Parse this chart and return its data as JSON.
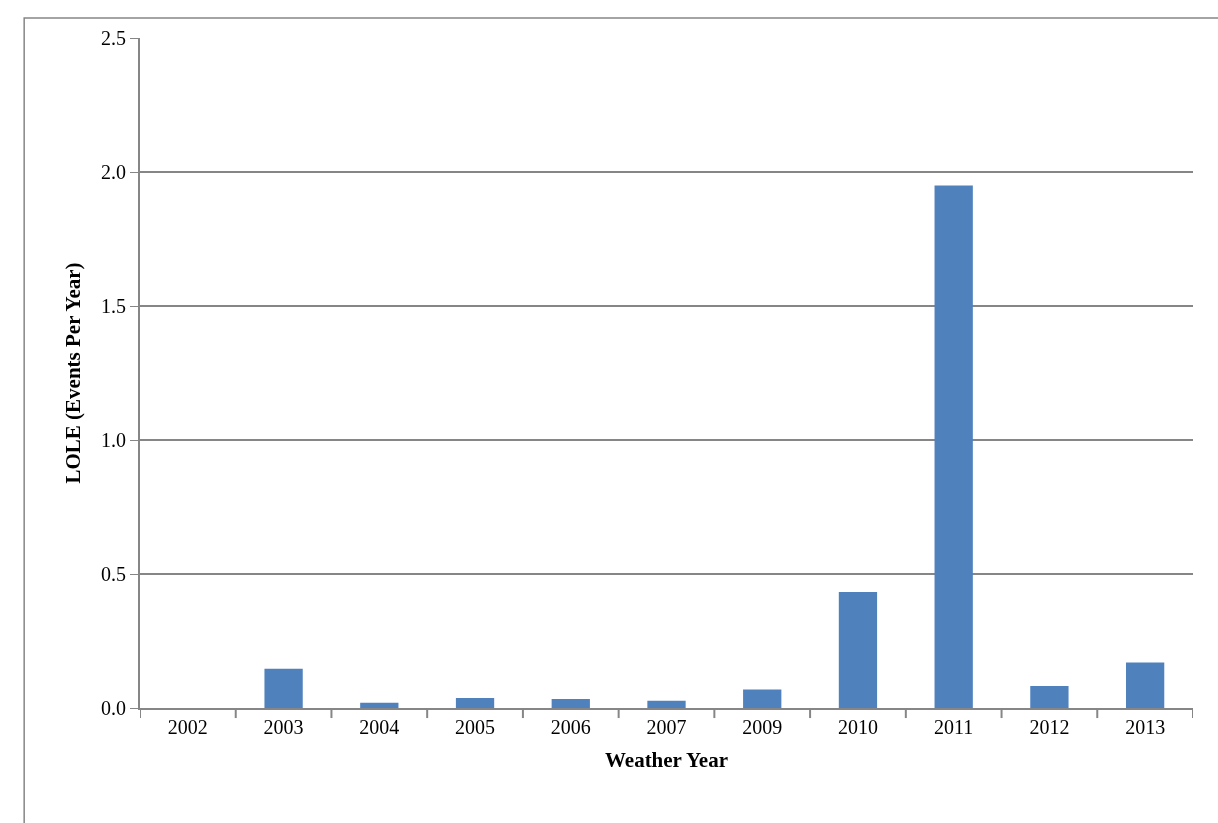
{
  "chart_data": {
    "type": "bar",
    "xlabel": "Weather Year",
    "ylabel": "LOLE (Events Per Year)",
    "categories": [
      "2002",
      "2003",
      "2004",
      "2005",
      "2006",
      "2007",
      "2009",
      "2010",
      "2011",
      "2012",
      "2013"
    ],
    "values": [
      0,
      0.146,
      0.02,
      0.037,
      0.034,
      0.027,
      0.069,
      0.433,
      1.95,
      0.082,
      0.17
    ],
    "color": "#4f81bd",
    "ylim": [
      0,
      2.5
    ],
    "yticks": [
      {
        "value": 0,
        "label": "0.0"
      },
      {
        "value": 0.5,
        "label": "0.5"
      },
      {
        "value": 1,
        "label": "1.0"
      },
      {
        "value": 1.5,
        "label": "1.5"
      },
      {
        "value": 2,
        "label": "2.0"
      },
      {
        "value": 2.5,
        "label": "2.5"
      }
    ],
    "grid": "y"
  }
}
